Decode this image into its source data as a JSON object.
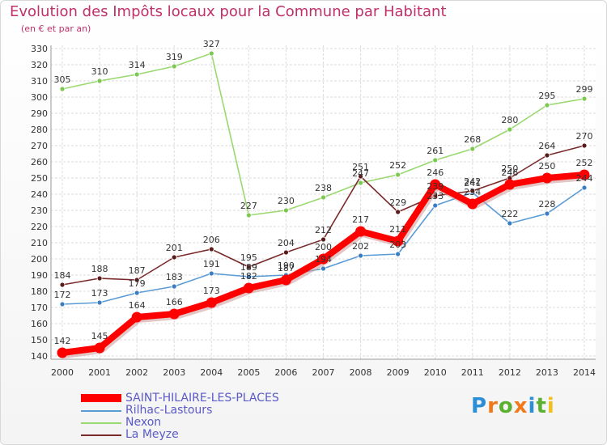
{
  "title": "Evolution des Impôts locaux pour la Commune par Habitant",
  "subtitle": "(en € et par an)",
  "logo": {
    "text": "Proxiti",
    "colors": [
      "#2a8fd6",
      "#f07a1a",
      "#5ab030",
      "#f07a1a",
      "#2a8fd6",
      "#5ab030",
      "#f0c020"
    ]
  },
  "chart_data": {
    "type": "line",
    "title": "Evolution des Impôts locaux pour la Commune par Habitant",
    "subtitle": "(en € et par an)",
    "x": [
      "2000",
      "2001",
      "2002",
      "2003",
      "2004",
      "2005",
      "2006",
      "2007",
      "2008",
      "2009",
      "2010",
      "2011",
      "2012",
      "2013",
      "2014"
    ],
    "ylim": [
      140,
      330
    ],
    "yticks": [
      140,
      150,
      160,
      170,
      180,
      190,
      200,
      210,
      220,
      230,
      240,
      250,
      260,
      270,
      280,
      290,
      300,
      310,
      320,
      330
    ],
    "grid": true,
    "legend_position": "bottom-left",
    "series": [
      {
        "name": "Rilhac-Lastours",
        "color": "#5b9bd5",
        "marker": "#3a7dc4",
        "values": [
          172,
          173,
          179,
          183,
          191,
          189,
          190,
          194,
          202,
          203,
          233,
          241,
          222,
          228,
          244
        ],
        "labels": [
          "172",
          "173",
          "179",
          "183",
          "191",
          "189",
          "190",
          "194",
          "202",
          "203",
          "233",
          "241",
          "222",
          "228",
          "244"
        ]
      },
      {
        "name": "Nexon",
        "color": "#9ad870",
        "marker": "#7cc850",
        "values": [
          305,
          310,
          314,
          319,
          327,
          227,
          230,
          238,
          247,
          252,
          261,
          268,
          280,
          295,
          299
        ],
        "labels": [
          "305",
          "310",
          "314",
          "319",
          "327",
          "227",
          "230",
          "238",
          "247",
          "252",
          "261",
          "268",
          "280",
          "295",
          "299"
        ]
      },
      {
        "name": "La Meyze",
        "color": "#7a2a2a",
        "marker": "#5a1a1a",
        "values": [
          184,
          188,
          187,
          201,
          206,
          195,
          204,
          212,
          251,
          229,
          239,
          242,
          250,
          264,
          270
        ],
        "labels": [
          "184",
          "188",
          "187",
          "201",
          "206",
          "195",
          "204",
          "212",
          "251",
          "229",
          "239",
          "242",
          "250",
          "264",
          "270"
        ]
      },
      {
        "name": "SAINT-HILAIRE-LES-PLACES",
        "color": "#ff0000",
        "marker": "#ff0000",
        "values": [
          142,
          145,
          164,
          166,
          173,
          182,
          187,
          200,
          217,
          211,
          246,
          234,
          246,
          250,
          252
        ],
        "labels": [
          "142",
          "145",
          "164",
          "166",
          "173",
          "182",
          "187",
          "200",
          "217",
          "211",
          "246",
          "234",
          "246",
          "250",
          "252"
        ]
      }
    ],
    "legend": [
      {
        "name": "SAINT-HILAIRE-LES-PLACES",
        "color": "#ff0000",
        "thick": true
      },
      {
        "name": "Rilhac-Lastours",
        "color": "#5b9bd5",
        "thick": false
      },
      {
        "name": "Nexon",
        "color": "#9ad870",
        "thick": false
      },
      {
        "name": "La Meyze",
        "color": "#7a2a2a",
        "thick": false
      }
    ]
  }
}
